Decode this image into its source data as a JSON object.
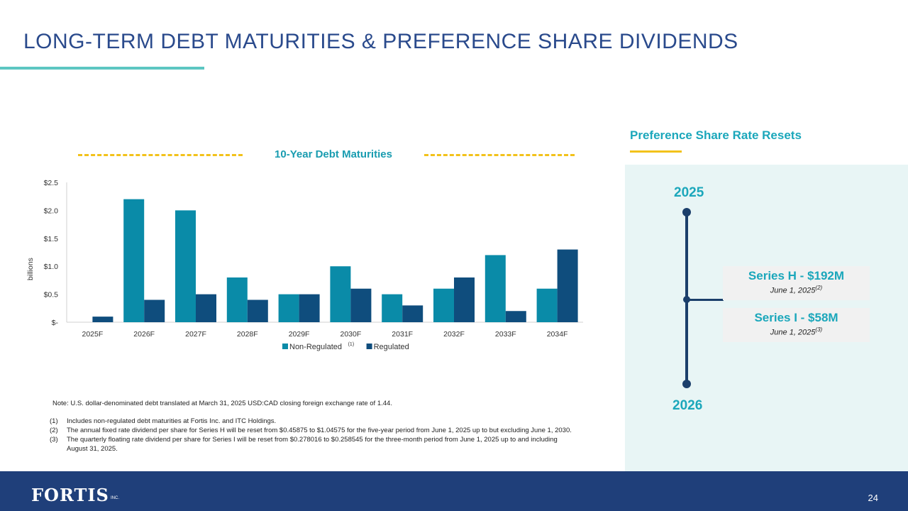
{
  "slide": {
    "title": "LONG-TERM DEBT MATURITIES & PREFERENCE SHARE DIVIDENDS",
    "page_number": "24",
    "logo_text": "FORTIS",
    "logo_inc": "INC."
  },
  "colors": {
    "title": "#2a4a8c",
    "accent_teal": "#1ba7bb",
    "non_regulated": "#0a8ba8",
    "regulated": "#0f4d7d",
    "footer": "#1f3f7a",
    "yellow": "#f2c21b"
  },
  "chart_data": {
    "type": "bar",
    "title": "10-Year Debt Maturities",
    "ylabel": "billions",
    "xlabel": "",
    "categories": [
      "2025F",
      "2026F",
      "2027F",
      "2028F",
      "2029F",
      "2030F",
      "2031F",
      "2032F",
      "2033F",
      "2034F"
    ],
    "series": [
      {
        "name": "Non-Regulated",
        "superscript": "(1)",
        "values": [
          0,
          2.2,
          2.0,
          0.8,
          0.5,
          1.0,
          0.5,
          0.6,
          1.2,
          0.6
        ]
      },
      {
        "name": "Regulated",
        "values": [
          0.1,
          0.4,
          0.5,
          0.4,
          0.5,
          0.6,
          0.3,
          0.8,
          0.2,
          1.3
        ]
      }
    ],
    "ylim": [
      0,
      2.5
    ],
    "yticks": [
      0,
      0.5,
      1.0,
      1.5,
      2.0,
      2.5
    ],
    "ytick_labels": [
      "$-",
      "$0.5",
      "$1.0",
      "$1.5",
      "$2.0",
      "$2.5"
    ],
    "legend": "bottom",
    "grid": false
  },
  "notes": {
    "main": "Note: U.S. dollar-denominated debt translated at March 31, 2025 USD:CAD closing foreign exchange rate of 1.44.",
    "footnotes": [
      {
        "num": "(1)",
        "text": "Includes non-regulated debt maturities at Fortis Inc. and ITC Holdings."
      },
      {
        "num": "(2)",
        "text": "The annual fixed rate dividend per share for Series H will be reset from $0.45875 to $1.04575 for the five-year period from June 1, 2025 up to but excluding June 1, 2030."
      },
      {
        "num": "(3)",
        "text": "The quarterly floating rate dividend per share for Series I will be reset from $0.278016 to $0.258545 for the three-month period from June 1, 2025 up to and including August 31, 2025."
      }
    ]
  },
  "preference": {
    "title": "Preference Share Rate Resets",
    "year_start": "2025",
    "year_end": "2026",
    "series_h": {
      "name": "Series H - $192M",
      "date": "June 1, 2025",
      "sup": "(2)"
    },
    "series_i": {
      "name": "Series I - $58M",
      "date": "June 1, 2025",
      "sup": "(3)"
    }
  }
}
